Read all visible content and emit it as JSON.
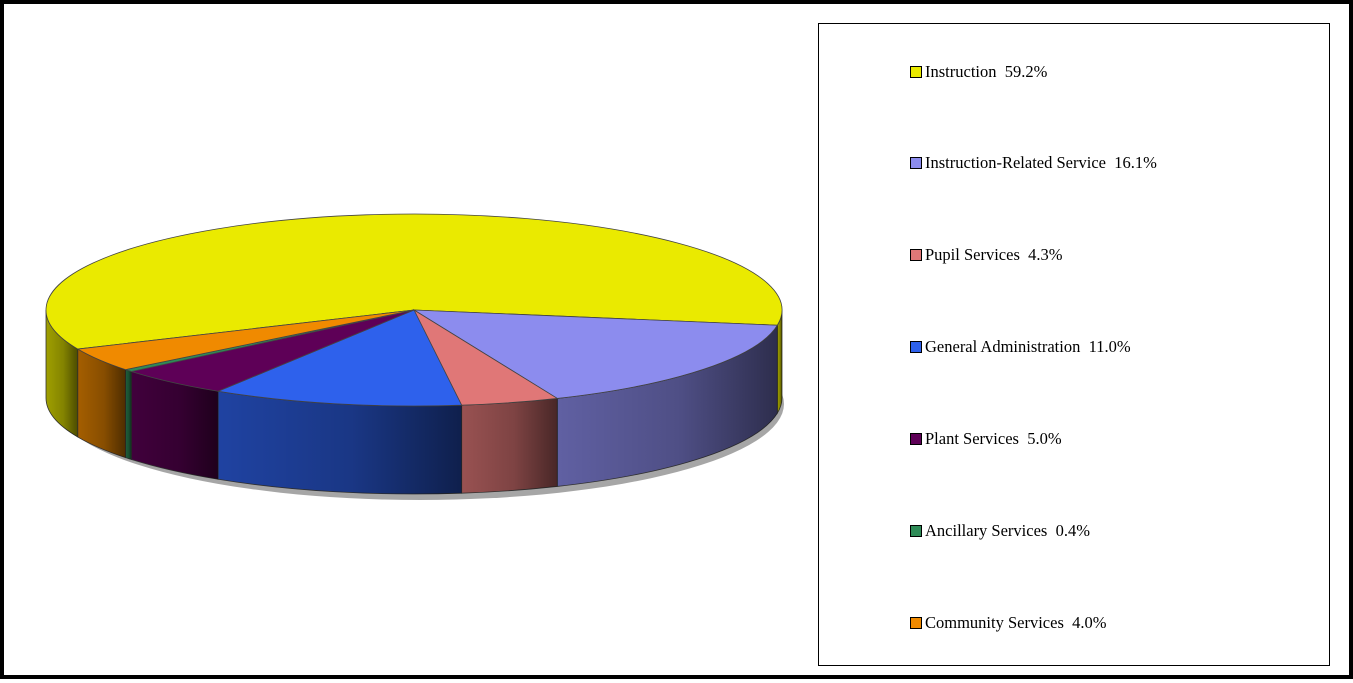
{
  "chart_data": {
    "type": "pie",
    "style": "3d",
    "legend_position": "right",
    "slices": [
      {
        "label": "Instruction",
        "value": 59.2,
        "legend": "Instruction  59.2%",
        "color": "#EAEA00"
      },
      {
        "label": "Instruction-Related Service",
        "value": 16.1,
        "legend": "Instruction-Related Service  16.1%",
        "color": "#8C8CEE"
      },
      {
        "label": "Pupil Services",
        "value": 4.3,
        "legend": "Pupil Services  4.3%",
        "color": "#E07777"
      },
      {
        "label": "General Administration",
        "value": 11.0,
        "legend": "General Administration  11.0%",
        "color": "#2E61EC"
      },
      {
        "label": "Plant Services",
        "value": 5.0,
        "legend": "Plant Services  5.0%",
        "color": "#5E0057"
      },
      {
        "label": "Ancillary Services",
        "value": 0.4,
        "legend": "Ancillary Services  0.4%",
        "color": "#2E8B57"
      },
      {
        "label": "Community Services",
        "value": 4.0,
        "legend": "Community Services  4.0%",
        "color": "#F08A00"
      }
    ]
  }
}
